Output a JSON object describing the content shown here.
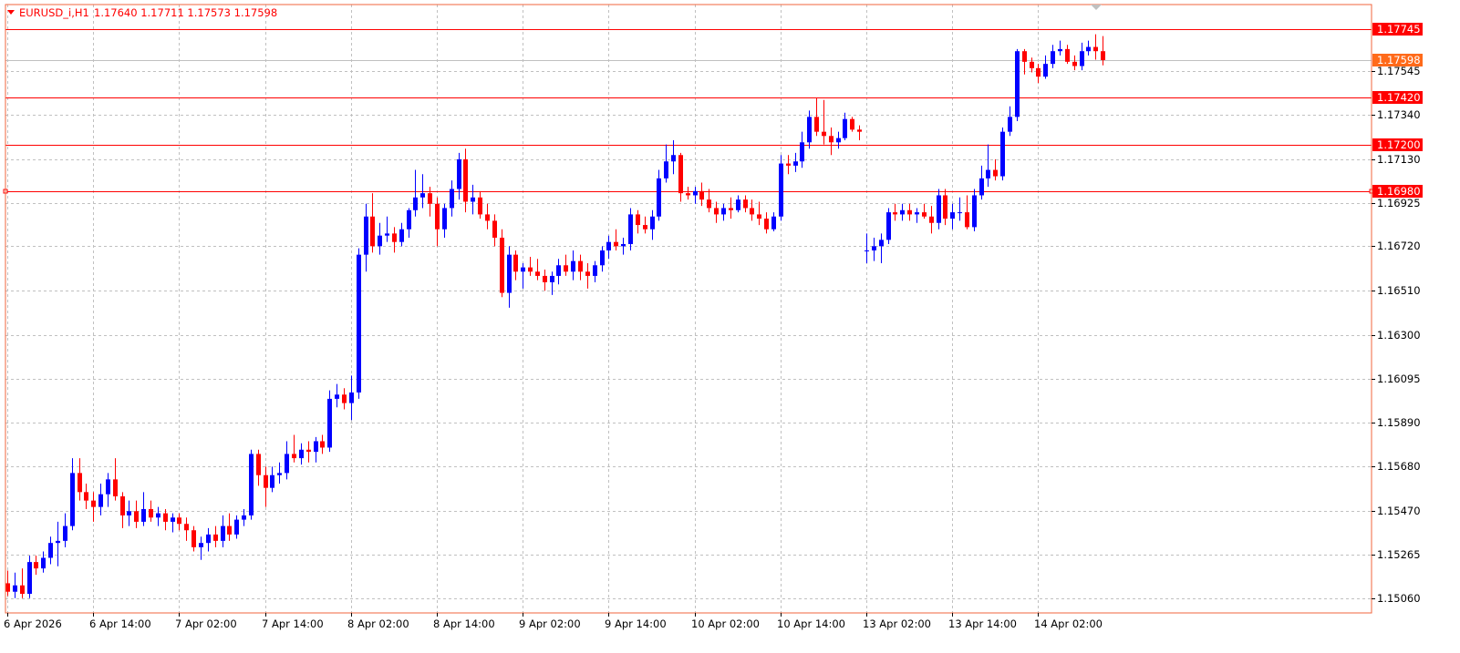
{
  "header": {
    "title": "EURUSD_i,H1",
    "ohlc": "1.17640 1.17711 1.17573 1.17598"
  },
  "colors": {
    "frame": "#f0643c",
    "grid": "#c0c0c0",
    "bull": "#0000ff",
    "bear": "#ff0000",
    "level_line": "#ff0000",
    "price_line": "#c0c0c0",
    "current_price_bg": "#ff6a1a",
    "text": "#000000"
  },
  "chart_data": {
    "type": "candlestick",
    "symbol": "EURUSD_i",
    "timeframe": "H1",
    "grid": true,
    "ylim": [
      1.1499,
      1.1786
    ],
    "y_ticks": [
      1.17545,
      1.1734,
      1.1713,
      1.16925,
      1.1672,
      1.1651,
      1.163,
      1.16095,
      1.1589,
      1.1568,
      1.1547,
      1.15265,
      1.1506
    ],
    "y_tick_labels": [
      "1.17545",
      "1.17340",
      "1.17130",
      "1.16925",
      "1.16720",
      "1.16510",
      "1.16300",
      "1.16095",
      "1.15890",
      "1.15680",
      "1.15470",
      "1.15265",
      "1.15060"
    ],
    "x_tick_labels": [
      "6 Apr 2026",
      "6 Apr 14:00",
      "7 Apr 02:00",
      "7 Apr 14:00",
      "8 Apr 02:00",
      "8 Apr 14:00",
      "9 Apr 02:00",
      "9 Apr 14:00",
      "10 Apr 02:00",
      "10 Apr 14:00",
      "13 Apr 02:00",
      "13 Apr 14:00",
      "14 Apr 02:00"
    ],
    "x_tick_bar_index": [
      0,
      12,
      24,
      36,
      48,
      60,
      72,
      84,
      96,
      108,
      120,
      132,
      144
    ],
    "levels": [
      {
        "value": 1.17745,
        "label": "1.17745"
      },
      {
        "value": 1.1742,
        "label": "1.17420"
      },
      {
        "value": 1.172,
        "label": "1.17200"
      },
      {
        "value": 1.1698,
        "label": "1.16980"
      }
    ],
    "current_price": {
      "value": 1.17598,
      "label": "1.17598"
    },
    "candles": [
      [
        1.1513,
        1.1519,
        1.1507,
        1.1509
      ],
      [
        1.1509,
        1.1518,
        1.1506,
        1.1512
      ],
      [
        1.1512,
        1.152,
        1.1506,
        1.1508
      ],
      [
        1.1508,
        1.1526,
        1.1506,
        1.1523
      ],
      [
        1.1523,
        1.1526,
        1.1517,
        1.152
      ],
      [
        1.152,
        1.1528,
        1.1518,
        1.1525
      ],
      [
        1.1525,
        1.1535,
        1.1522,
        1.1532
      ],
      [
        1.1532,
        1.1542,
        1.1521,
        1.1533
      ],
      [
        1.1533,
        1.1546,
        1.153,
        1.154
      ],
      [
        1.154,
        1.1572,
        1.1538,
        1.1565
      ],
      [
        1.1565,
        1.1572,
        1.1552,
        1.1556
      ],
      [
        1.1556,
        1.156,
        1.1548,
        1.1552
      ],
      [
        1.1552,
        1.1556,
        1.1542,
        1.1549
      ],
      [
        1.1549,
        1.156,
        1.1545,
        1.1555
      ],
      [
        1.1555,
        1.1565,
        1.1549,
        1.1562
      ],
      [
        1.1562,
        1.1572,
        1.1552,
        1.1554
      ],
      [
        1.1554,
        1.1556,
        1.1539,
        1.1545
      ],
      [
        1.1545,
        1.1552,
        1.154,
        1.1547
      ],
      [
        1.1547,
        1.1552,
        1.1539,
        1.1542
      ],
      [
        1.1542,
        1.1556,
        1.154,
        1.1548
      ],
      [
        1.1548,
        1.1552,
        1.1542,
        1.1544
      ],
      [
        1.1544,
        1.1549,
        1.154,
        1.1546
      ],
      [
        1.1546,
        1.1548,
        1.1538,
        1.1542
      ],
      [
        1.1542,
        1.1546,
        1.1537,
        1.1544
      ],
      [
        1.1544,
        1.1546,
        1.1538,
        1.1541
      ],
      [
        1.1541,
        1.1544,
        1.1533,
        1.1538
      ],
      [
        1.1538,
        1.154,
        1.1528,
        1.153
      ],
      [
        1.153,
        1.1535,
        1.1524,
        1.1532
      ],
      [
        1.1532,
        1.1539,
        1.1528,
        1.1536
      ],
      [
        1.1536,
        1.154,
        1.153,
        1.1533
      ],
      [
        1.1533,
        1.1545,
        1.153,
        1.154
      ],
      [
        1.154,
        1.1546,
        1.1533,
        1.1536
      ],
      [
        1.1536,
        1.1545,
        1.1534,
        1.1543
      ],
      [
        1.1543,
        1.1548,
        1.154,
        1.1545
      ],
      [
        1.1545,
        1.1576,
        1.1543,
        1.1574
      ],
      [
        1.1574,
        1.1576,
        1.1559,
        1.1564
      ],
      [
        1.1564,
        1.1568,
        1.1549,
        1.1558
      ],
      [
        1.1558,
        1.1568,
        1.1556,
        1.1564
      ],
      [
        1.1564,
        1.157,
        1.156,
        1.1565
      ],
      [
        1.1565,
        1.158,
        1.1562,
        1.1574
      ],
      [
        1.1574,
        1.1583,
        1.157,
        1.1572
      ],
      [
        1.1572,
        1.1579,
        1.1569,
        1.1576
      ],
      [
        1.1576,
        1.158,
        1.157,
        1.1575
      ],
      [
        1.1575,
        1.1582,
        1.157,
        1.158
      ],
      [
        1.158,
        1.1583,
        1.1574,
        1.1577
      ],
      [
        1.1577,
        1.1604,
        1.1575,
        1.16
      ],
      [
        1.16,
        1.1607,
        1.1596,
        1.1602
      ],
      [
        1.1602,
        1.1605,
        1.1595,
        1.1598
      ],
      [
        1.1598,
        1.1611,
        1.159,
        1.1603
      ],
      [
        1.1603,
        1.1671,
        1.16,
        1.1668
      ],
      [
        1.1668,
        1.1692,
        1.166,
        1.1686
      ],
      [
        1.1686,
        1.1697,
        1.1669,
        1.1672
      ],
      [
        1.1672,
        1.1683,
        1.1668,
        1.1677
      ],
      [
        1.1677,
        1.1686,
        1.1674,
        1.1678
      ],
      [
        1.1678,
        1.1681,
        1.1669,
        1.1674
      ],
      [
        1.1674,
        1.1683,
        1.1672,
        1.168
      ],
      [
        1.168,
        1.169,
        1.1676,
        1.1689
      ],
      [
        1.1689,
        1.1708,
        1.1686,
        1.1695
      ],
      [
        1.1695,
        1.1706,
        1.169,
        1.1697
      ],
      [
        1.1697,
        1.17,
        1.1686,
        1.1692
      ],
      [
        1.1692,
        1.1695,
        1.1672,
        1.168
      ],
      [
        1.168,
        1.1692,
        1.1676,
        1.169
      ],
      [
        1.169,
        1.1703,
        1.1686,
        1.1699
      ],
      [
        1.1699,
        1.1716,
        1.1694,
        1.1713
      ],
      [
        1.1713,
        1.1718,
        1.1688,
        1.1693
      ],
      [
        1.1693,
        1.1701,
        1.1687,
        1.1695
      ],
      [
        1.1695,
        1.1698,
        1.1685,
        1.1687
      ],
      [
        1.1687,
        1.1692,
        1.168,
        1.1684
      ],
      [
        1.1684,
        1.1687,
        1.1672,
        1.1676
      ],
      [
        1.1676,
        1.168,
        1.1648,
        1.165
      ],
      [
        1.165,
        1.1672,
        1.1643,
        1.1668
      ],
      [
        1.1668,
        1.167,
        1.1656,
        1.166
      ],
      [
        1.166,
        1.1664,
        1.1652,
        1.1662
      ],
      [
        1.1662,
        1.1667,
        1.1658,
        1.166
      ],
      [
        1.166,
        1.1666,
        1.1656,
        1.1658
      ],
      [
        1.1658,
        1.1661,
        1.1651,
        1.1655
      ],
      [
        1.1655,
        1.166,
        1.1649,
        1.1658
      ],
      [
        1.1658,
        1.1666,
        1.1654,
        1.1663
      ],
      [
        1.1663,
        1.1668,
        1.1658,
        1.166
      ],
      [
        1.166,
        1.167,
        1.1656,
        1.1665
      ],
      [
        1.1665,
        1.1668,
        1.1656,
        1.166
      ],
      [
        1.166,
        1.1664,
        1.1652,
        1.1658
      ],
      [
        1.1658,
        1.1665,
        1.1655,
        1.1663
      ],
      [
        1.1663,
        1.1672,
        1.166,
        1.167
      ],
      [
        1.167,
        1.1677,
        1.1666,
        1.1674
      ],
      [
        1.1674,
        1.168,
        1.167,
        1.1672
      ],
      [
        1.1672,
        1.1676,
        1.1668,
        1.1673
      ],
      [
        1.1673,
        1.169,
        1.167,
        1.1687
      ],
      [
        1.1687,
        1.1689,
        1.1678,
        1.1682
      ],
      [
        1.1682,
        1.1686,
        1.1678,
        1.168
      ],
      [
        1.168,
        1.1689,
        1.1675,
        1.1686
      ],
      [
        1.1686,
        1.1708,
        1.1684,
        1.1704
      ],
      [
        1.1704,
        1.172,
        1.1702,
        1.1712
      ],
      [
        1.1712,
        1.1722,
        1.1706,
        1.1715
      ],
      [
        1.1715,
        1.1716,
        1.1693,
        1.1697
      ],
      [
        1.1697,
        1.17,
        1.1694,
        1.1696
      ],
      [
        1.1696,
        1.17,
        1.1692,
        1.1698
      ],
      [
        1.1698,
        1.1702,
        1.1691,
        1.1694
      ],
      [
        1.1694,
        1.1699,
        1.1688,
        1.169
      ],
      [
        1.169,
        1.1693,
        1.1683,
        1.1687
      ],
      [
        1.1687,
        1.1692,
        1.1684,
        1.169
      ],
      [
        1.169,
        1.1695,
        1.1685,
        1.1689
      ],
      [
        1.1689,
        1.1696,
        1.1688,
        1.1694
      ],
      [
        1.1694,
        1.1696,
        1.1688,
        1.169
      ],
      [
        1.169,
        1.1694,
        1.1684,
        1.1687
      ],
      [
        1.1687,
        1.1693,
        1.1682,
        1.1685
      ],
      [
        1.1685,
        1.1688,
        1.1678,
        1.168
      ],
      [
        1.168,
        1.1688,
        1.1679,
        1.1686
      ],
      [
        1.1686,
        1.1715,
        1.1684,
        1.1711
      ],
      [
        1.1711,
        1.1715,
        1.1706,
        1.171
      ],
      [
        1.171,
        1.1716,
        1.1707,
        1.1712
      ],
      [
        1.1712,
        1.1726,
        1.1709,
        1.1721
      ],
      [
        1.1721,
        1.1736,
        1.1718,
        1.1733
      ],
      [
        1.1733,
        1.1742,
        1.1724,
        1.1726
      ],
      [
        1.1726,
        1.1741,
        1.172,
        1.1724
      ],
      [
        1.1724,
        1.1728,
        1.1715,
        1.1721
      ],
      [
        1.1721,
        1.1726,
        1.1718,
        1.1723
      ],
      [
        1.1723,
        1.1735,
        1.1722,
        1.1732
      ],
      [
        1.1732,
        1.1733,
        1.1726,
        1.1727
      ],
      [
        1.1727,
        1.1729,
        1.1722,
        1.1726
      ],
      [
        1.167,
        1.1678,
        1.1664,
        1.167
      ],
      [
        1.167,
        1.1676,
        1.1665,
        1.1672
      ],
      [
        1.1672,
        1.1678,
        1.1664,
        1.1675
      ],
      [
        1.1675,
        1.169,
        1.1673,
        1.1688
      ],
      [
        1.1688,
        1.1692,
        1.1684,
        1.1687
      ],
      [
        1.1687,
        1.1692,
        1.1684,
        1.1689
      ],
      [
        1.1689,
        1.1692,
        1.1684,
        1.1687
      ],
      [
        1.1687,
        1.169,
        1.1683,
        1.1688
      ],
      [
        1.1688,
        1.1692,
        1.1685,
        1.1686
      ],
      [
        1.1686,
        1.1691,
        1.1678,
        1.1683
      ],
      [
        1.1683,
        1.1699,
        1.168,
        1.1696
      ],
      [
        1.1696,
        1.1699,
        1.1682,
        1.1685
      ],
      [
        1.1685,
        1.1692,
        1.168,
        1.1688
      ],
      [
        1.1688,
        1.1695,
        1.1684,
        1.1688
      ],
      [
        1.1688,
        1.1696,
        1.168,
        1.1681
      ],
      [
        1.1681,
        1.1699,
        1.1679,
        1.1696
      ],
      [
        1.1696,
        1.171,
        1.1694,
        1.1704
      ],
      [
        1.1704,
        1.172,
        1.17,
        1.1708
      ],
      [
        1.1708,
        1.1713,
        1.1703,
        1.1705
      ],
      [
        1.1705,
        1.1728,
        1.1703,
        1.1726
      ],
      [
        1.1726,
        1.1738,
        1.1724,
        1.1733
      ],
      [
        1.1733,
        1.1765,
        1.1731,
        1.1764
      ],
      [
        1.1764,
        1.1765,
        1.1753,
        1.1759
      ],
      [
        1.1759,
        1.1761,
        1.1754,
        1.1756
      ],
      [
        1.1756,
        1.1758,
        1.1749,
        1.1752
      ],
      [
        1.1752,
        1.1762,
        1.1751,
        1.1758
      ],
      [
        1.1758,
        1.1767,
        1.1756,
        1.1764
      ],
      [
        1.1764,
        1.1769,
        1.1762,
        1.1765
      ],
      [
        1.1765,
        1.1767,
        1.1758,
        1.1759
      ],
      [
        1.1759,
        1.1762,
        1.1755,
        1.1757
      ],
      [
        1.1757,
        1.1768,
        1.1755,
        1.1764
      ],
      [
        1.1764,
        1.1769,
        1.1762,
        1.1766
      ],
      [
        1.1766,
        1.1772,
        1.176,
        1.1764
      ],
      [
        1.1764,
        1.17711,
        1.17573,
        1.17598
      ]
    ]
  }
}
